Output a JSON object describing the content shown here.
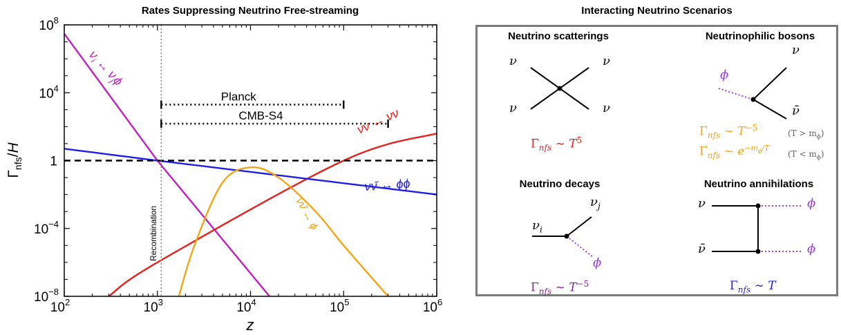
{
  "chart_data": {
    "type": "line",
    "title": "Rates Suppressing Neutrino Free-streaming",
    "xlabel": "z",
    "ylabel": "Γnfs/H",
    "xscale": "log",
    "yscale": "log",
    "xlim": [
      100,
      1000000
    ],
    "ylim": [
      1e-08,
      100000000.0
    ],
    "x_ticks": [
      {
        "v": 100,
        "base": "10",
        "exp": "2"
      },
      {
        "v": 1000,
        "base": "10",
        "exp": "3"
      },
      {
        "v": 10000,
        "base": "10",
        "exp": "4"
      },
      {
        "v": 100000,
        "base": "10",
        "exp": "5"
      },
      {
        "v": 1000000,
        "base": "10",
        "exp": "6"
      }
    ],
    "y_ticks": [
      {
        "v": 1e-08,
        "base": "10",
        "exp": "−8"
      },
      {
        "v": 0.0001,
        "base": "10",
        "exp": "−4"
      },
      {
        "v": 1,
        "base": "1",
        "exp": ""
      },
      {
        "v": 10000.0,
        "base": "10",
        "exp": "4"
      },
      {
        "v": 100000000.0,
        "base": "10",
        "exp": "8"
      }
    ],
    "grid": false,
    "series": [
      {
        "name": "νi ↔ νjϕ",
        "color": "#c020c0",
        "x": [
          100,
          1000,
          16000
        ],
        "y": [
          30000000.0,
          1,
          1e-08
        ]
      },
      {
        "name": "νν ↔ νν",
        "color": "#e8201c",
        "x": [
          300,
          1000,
          100000,
          1000000
        ],
        "y": [
          1e-08,
          1e-06,
          1,
          40
        ]
      },
      {
        "name": "νν̄ ↔ ϕϕ",
        "color": "#1e1ee6",
        "x": [
          100,
          1000,
          1000000
        ],
        "y": [
          5,
          1,
          0.01
        ]
      },
      {
        "name": "νν̄ ↔ ϕ",
        "color": "#f5a214",
        "x": [
          1700,
          2500,
          5000,
          10000,
          20000,
          50000,
          100000,
          300000
        ],
        "y": [
          1e-08,
          1e-05,
          0.05,
          0.4,
          0.1,
          0.001,
          1e-05,
          1e-08
        ]
      }
    ],
    "reference_lines": [
      {
        "type": "horizontal",
        "y": 1,
        "style": "dashed",
        "color": "#000000"
      },
      {
        "type": "vertical",
        "x": 1100,
        "style": "dotted",
        "color": "#808080",
        "label": "Recombination"
      }
    ],
    "ranges": [
      {
        "label": "Planck",
        "x": [
          1100,
          100000
        ],
        "y": 2000
      },
      {
        "label": "CMB-S4",
        "x": [
          1100,
          300000
        ],
        "y": 150
      }
    ],
    "labels": {
      "s1": {
        "a": "ν",
        "b": "i",
        "c": " ↔ ν",
        "d": "j",
        "e": "ϕ"
      },
      "s2": {
        "a": "νν ↔ νν"
      },
      "s3": {
        "a": "νν̄ ↔ ϕϕ"
      },
      "s4": {
        "a": "νν̄ ↔ ϕ"
      }
    }
  },
  "scenarios": {
    "title": "Interacting Neutrino Scenarios",
    "scattering": {
      "title": "Neutrino scatterings",
      "legs": [
        "ν",
        "ν",
        "ν",
        "ν"
      ],
      "rate": {
        "gamma": "Γ",
        "sub": "nfs",
        "rel": " ∼ ",
        "T": "T",
        "exp": "5"
      }
    },
    "bosons": {
      "title": "Neutrinophilic bosons",
      "legs": {
        "phi": "ϕ",
        "nu": "ν",
        "nubar": "ν̄"
      },
      "rate1": {
        "gamma": "Γ",
        "sub": "nfs",
        "rel": " ∼ ",
        "T": "T",
        "exp": "−5",
        "cond": "(T > m",
        "cond_sub": "ϕ",
        "cond_end": ")"
      },
      "rate2": {
        "gamma": "Γ",
        "sub": "nfs",
        "rel": " ∼ ",
        "e": "e",
        "exp": "−m",
        "exp_sub": "ϕ",
        "exp_end": "/T",
        "cond": "(T < m",
        "cond_sub": "ϕ",
        "cond_end": ")"
      }
    },
    "decays": {
      "title": "Neutrino decays",
      "legs": {
        "nui": "ν",
        "i": "i",
        "nuj": "ν",
        "j": "j",
        "phi": "ϕ"
      },
      "rate": {
        "gamma": "Γ",
        "sub": "nfs",
        "rel": " ∼ ",
        "T": "T",
        "exp": "−5"
      }
    },
    "annihilations": {
      "title": "Neutrino annihilations",
      "legs": {
        "nu": "ν",
        "nubar": "ν̄",
        "phi1": "ϕ",
        "phi2": "ϕ"
      },
      "rate": {
        "gamma": "Γ",
        "sub": "nfs",
        "rel": " ∼ ",
        "T": "T"
      }
    }
  },
  "colors": {
    "red": "#e8201c",
    "blue": "#1e1ee6",
    "orange": "#f5a214",
    "magenta": "#c020c0",
    "purple": "#8a1e9e",
    "phi": "#9a3be0",
    "frame": "#7a7a7a"
  }
}
